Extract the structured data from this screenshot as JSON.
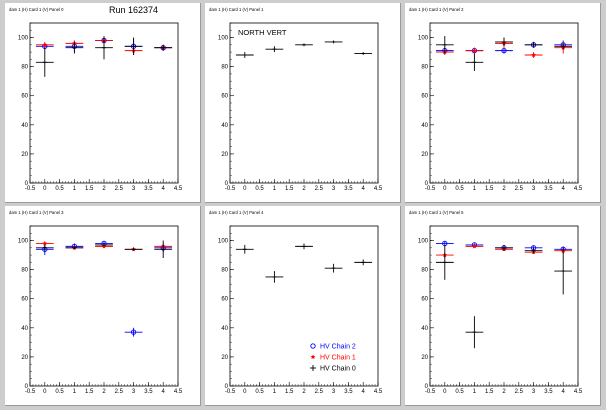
{
  "header": {
    "run_label": "Run 162374"
  },
  "chart_data": [
    {
      "type": "scatter",
      "title": "dam 1 (H) Card 1 (V) Panel 0",
      "annotation": "",
      "xlim": [
        -0.5,
        4.5
      ],
      "ylim": [
        0,
        110
      ],
      "xticks": [
        "-0.5",
        "0",
        "0.5",
        "1",
        "1.5",
        "2",
        "2.5",
        "3",
        "3.5",
        "4",
        "4.5"
      ],
      "yticks": [
        "0",
        "20",
        "40",
        "60",
        "80",
        "100"
      ],
      "series": [
        {
          "name": "HV Chain 2",
          "color": "#0000ff",
          "marker": "circle",
          "x": [
            0,
            1,
            2,
            3,
            4
          ],
          "y": [
            94,
            94,
            98,
            94,
            93
          ],
          "yerr": [
            2,
            4,
            2,
            5,
            2
          ]
        },
        {
          "name": "HV Chain 1",
          "color": "#ff0000",
          "marker": "star",
          "x": [
            0,
            1,
            2,
            3,
            4
          ],
          "y": [
            95,
            96,
            98,
            91,
            93
          ],
          "yerr": [
            2,
            2,
            2,
            3,
            2
          ]
        },
        {
          "name": "HV Chain 0",
          "color": "#000000",
          "marker": "cross",
          "x": [
            0,
            1,
            2,
            3,
            4
          ],
          "y": [
            83,
            93,
            93,
            94,
            93
          ],
          "yerr": [
            10,
            4,
            8,
            6,
            2
          ]
        }
      ]
    },
    {
      "type": "scatter",
      "title": "dam 1 (H) Card 1 (V) Panel 1",
      "annotation": "NORTH VERT",
      "xlim": [
        -0.5,
        4.5
      ],
      "ylim": [
        0,
        110
      ],
      "xticks": [
        "-0.5",
        "0",
        "0.5",
        "1",
        "1.5",
        "2",
        "2.5",
        "3",
        "3.5",
        "4",
        "4.5"
      ],
      "yticks": [
        "0",
        "20",
        "40",
        "60",
        "80",
        "100"
      ],
      "series": [
        {
          "name": "HV Chain 0",
          "color": "#000000",
          "marker": "cross",
          "x": [
            0,
            1,
            2,
            3,
            4
          ],
          "y": [
            88,
            92,
            95,
            97,
            89
          ],
          "yerr": [
            2,
            2,
            1,
            1,
            1
          ]
        }
      ]
    },
    {
      "type": "scatter",
      "title": "dam 1 (H) Card 1 (V) Panel 2",
      "annotation": "",
      "xlim": [
        -0.5,
        4.5
      ],
      "ylim": [
        0,
        110
      ],
      "xticks": [
        "-0.5",
        "0",
        "0.5",
        "1",
        "1.5",
        "2",
        "2.5",
        "3",
        "3.5",
        "4",
        "4.5"
      ],
      "yticks": [
        "0",
        "20",
        "40",
        "60",
        "80",
        "100"
      ],
      "series": [
        {
          "name": "HV Chain 2",
          "color": "#0000ff",
          "marker": "circle",
          "x": [
            0,
            1,
            2,
            3,
            4
          ],
          "y": [
            91,
            91,
            91,
            95,
            95
          ],
          "yerr": [
            2,
            2,
            2,
            2,
            3
          ]
        },
        {
          "name": "HV Chain 1",
          "color": "#ff0000",
          "marker": "star",
          "x": [
            0,
            1,
            2,
            3,
            4
          ],
          "y": [
            90,
            91,
            96,
            88,
            93
          ],
          "yerr": [
            2,
            2,
            4,
            2,
            4
          ]
        },
        {
          "name": "HV Chain 0",
          "color": "#000000",
          "marker": "cross",
          "x": [
            0,
            1,
            2,
            3,
            4
          ],
          "y": [
            95,
            83,
            97,
            95,
            94
          ],
          "yerr": [
            6,
            6,
            3,
            2,
            2
          ]
        }
      ]
    },
    {
      "type": "scatter",
      "title": "dam 1 (H) Card 1 (V) Panel 3",
      "annotation": "",
      "xlim": [
        -0.5,
        4.5
      ],
      "ylim": [
        0,
        110
      ],
      "xticks": [
        "-0.5",
        "0",
        "0.5",
        "1",
        "1.5",
        "2",
        "2.5",
        "3",
        "3.5",
        "4",
        "4.5"
      ],
      "yticks": [
        "0",
        "20",
        "40",
        "60",
        "80",
        "100"
      ],
      "series": [
        {
          "name": "HV Chain 2",
          "color": "#0000ff",
          "marker": "circle",
          "x": [
            0,
            1,
            2,
            3,
            4
          ],
          "y": [
            94,
            96,
            98,
            37,
            95
          ],
          "yerr": [
            4,
            2,
            1,
            3,
            3
          ]
        },
        {
          "name": "HV Chain 1",
          "color": "#ff0000",
          "marker": "star",
          "x": [
            0,
            1,
            2,
            3,
            4
          ],
          "y": [
            98,
            95,
            96,
            94,
            96
          ],
          "yerr": [
            1,
            1,
            1,
            1,
            1
          ]
        },
        {
          "name": "HV Chain 0",
          "color": "#000000",
          "marker": "cross",
          "x": [
            0,
            1,
            2,
            3,
            4
          ],
          "y": [
            95,
            95,
            97,
            94,
            94
          ],
          "yerr": [
            2,
            1,
            1,
            1,
            6
          ]
        }
      ]
    },
    {
      "type": "scatter",
      "title": "dam 1 (H) Card 1 (V) Panel 4",
      "annotation": "",
      "xlim": [
        -0.5,
        4.5
      ],
      "ylim": [
        0,
        110
      ],
      "xticks": [
        "-0.5",
        "0",
        "0.5",
        "1",
        "1.5",
        "2",
        "2.5",
        "3",
        "3.5",
        "4",
        "4.5"
      ],
      "yticks": [
        "0",
        "20",
        "40",
        "60",
        "80",
        "100"
      ],
      "legend": {
        "position": "bottom-right",
        "entries": [
          "HV Chain 2",
          "HV Chain 1",
          "HV Chain 0"
        ]
      },
      "series": [
        {
          "name": "HV Chain 0",
          "color": "#000000",
          "marker": "cross",
          "x": [
            0,
            1,
            2,
            3,
            4
          ],
          "y": [
            94,
            75,
            96,
            81,
            85
          ],
          "yerr": [
            3,
            4,
            2,
            3,
            2
          ]
        }
      ]
    },
    {
      "type": "scatter",
      "title": "dam 1 (H) Card 1 (V) Panel 5",
      "annotation": "",
      "xlim": [
        -0.5,
        4.5
      ],
      "ylim": [
        0,
        110
      ],
      "xticks": [
        "-0.5",
        "0",
        "0.5",
        "1",
        "1.5",
        "2",
        "2.5",
        "3",
        "3.5",
        "4",
        "4.5"
      ],
      "yticks": [
        "0",
        "20",
        "40",
        "60",
        "80",
        "100"
      ],
      "series": [
        {
          "name": "HV Chain 2",
          "color": "#0000ff",
          "marker": "circle",
          "x": [
            0,
            1,
            2,
            3,
            4
          ],
          "y": [
            98,
            97,
            95,
            95,
            94
          ],
          "yerr": [
            1,
            1,
            1,
            1,
            2
          ]
        },
        {
          "name": "HV Chain 1",
          "color": "#ff0000",
          "marker": "star",
          "x": [
            0,
            1,
            2,
            3,
            4
          ],
          "y": [
            90,
            96,
            94,
            92,
            93
          ],
          "yerr": [
            2,
            1,
            1,
            1,
            2
          ]
        },
        {
          "name": "HV Chain 0",
          "color": "#000000",
          "marker": "cross",
          "x": [
            0,
            1,
            2,
            3,
            4
          ],
          "y": [
            85,
            37,
            95,
            93,
            79
          ],
          "yerr": [
            12,
            11,
            2,
            2,
            16
          ]
        }
      ]
    }
  ]
}
